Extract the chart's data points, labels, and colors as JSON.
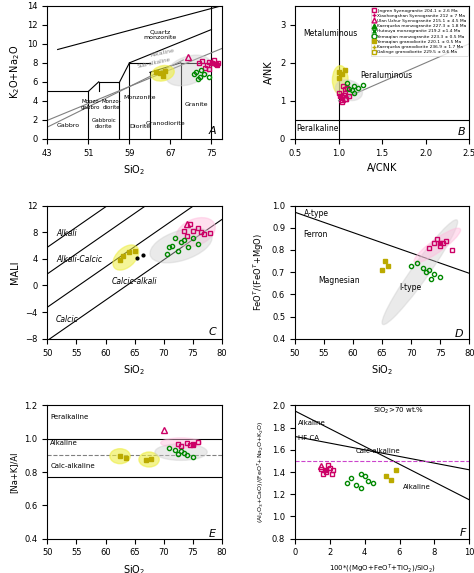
{
  "legend_entries": [
    {
      "label": "Jingren Syenogranite 204.1 ± 2.6 Ma",
      "marker": "s",
      "color": "#cc0066",
      "mfc": "none"
    },
    {
      "label": "Xiaohongshan Syenogranite 212 ± 7 Ma",
      "marker": "+",
      "color": "#cc0066",
      "mfc": "#cc0066"
    },
    {
      "label": "Ulan Uzhur Syenogranite 215.1 ± 4.5 Ma",
      "marker": "^",
      "color": "#cc0066",
      "mfc": "none"
    },
    {
      "label": "Kaerqueka monzogranite 227.3 ± 1.8 Ma",
      "marker": "^",
      "color": "#008800",
      "mfc": "#008800"
    },
    {
      "label": "Hutouya monzogranite 219.2 ±1.4 Ma",
      "marker": "x",
      "color": "#008800",
      "mfc": "#008800"
    },
    {
      "label": "Yemaqian monzogranite 223.3 ± 0.5 Ma",
      "marker": "o",
      "color": "#008800",
      "mfc": "none"
    },
    {
      "label": "Yemaqian granodiorite 220.1 ± 0.5 Ma",
      "marker": "s",
      "color": "#bbaa00",
      "mfc": "#bbaa00"
    },
    {
      "label": "Kaerqueka granodiorite 236.9 ± 1.7 Ma",
      "marker": "+",
      "color": "#bbaa00",
      "mfc": "#bbaa00"
    },
    {
      "label": "Galinge granodiorite 229.5 ± 0.6 Ma",
      "marker": "s",
      "color": "#bbaa00",
      "mfc": "none"
    }
  ],
  "colors": {
    "pink": "#cc0066",
    "green": "#008800",
    "yellow": "#bbaa00",
    "gray_fill": "#cccccc",
    "yellow_fill": "#eeee44",
    "pink_fill": "#ffbbdd"
  }
}
